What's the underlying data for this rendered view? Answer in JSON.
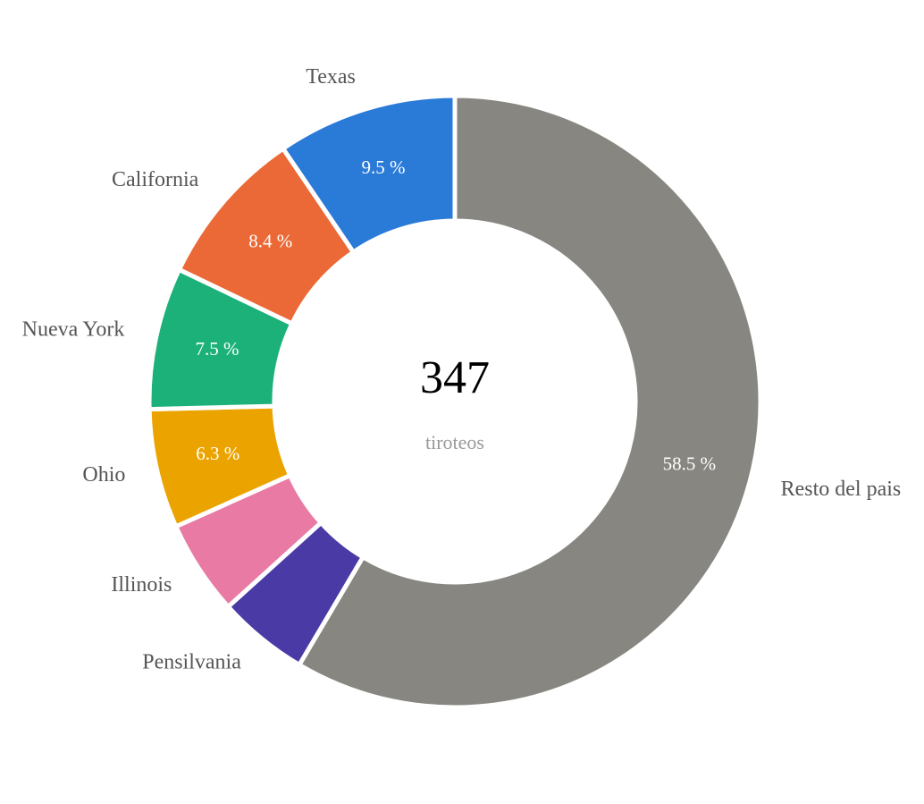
{
  "chart_data": {
    "type": "donut",
    "categories": [
      "Resto del pais",
      "Pensilvania",
      "Illinois",
      "Ohio",
      "Nueva York",
      "California",
      "Texas"
    ],
    "values": [
      58.5,
      4.8,
      5.0,
      6.3,
      7.5,
      8.4,
      9.5
    ],
    "value_labels": [
      "58.5 %",
      null,
      null,
      "6.3 %",
      "7.5 %",
      "8.4 %",
      "9.5 %"
    ],
    "colors": [
      "#878680",
      "#4a3aa6",
      "#e87aa3",
      "#eba300",
      "#1db17a",
      "#eb6937",
      "#2a7ad8"
    ],
    "center_value": 347,
    "center_label": "tiroteos"
  }
}
